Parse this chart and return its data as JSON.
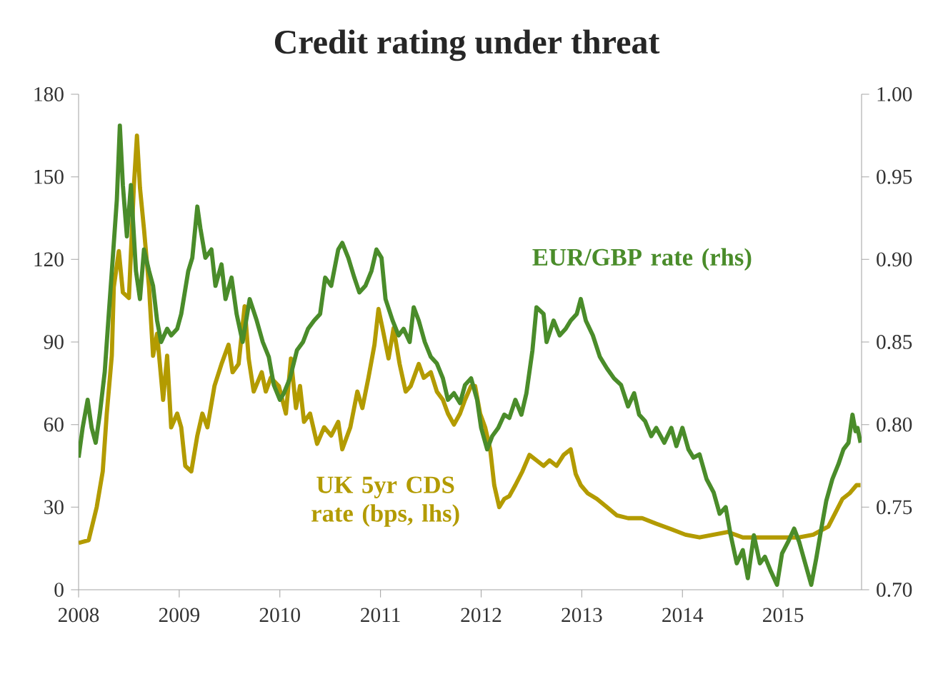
{
  "chart_data": {
    "type": "line",
    "title": "Credit rating under threat",
    "xlim": [
      2008,
      2015.78
    ],
    "xticks": [
      2008,
      2009,
      2010,
      2011,
      2012,
      2013,
      2014,
      2015
    ],
    "ylim": [
      0,
      180
    ],
    "yticks": [
      0,
      30,
      60,
      90,
      120,
      150,
      180
    ],
    "y2lim": [
      0.7,
      1.0
    ],
    "y2ticks": [
      {
        "value": 0.7,
        "label": "0.70"
      },
      {
        "value": 0.75,
        "label": "0.75"
      },
      {
        "value": 0.8,
        "label": "0.80"
      },
      {
        "value": 0.85,
        "label": "0.85"
      },
      {
        "value": 0.9,
        "label": "0.90"
      },
      {
        "value": 0.95,
        "label": "0.95"
      },
      {
        "value": 1.0,
        "label": "1.00"
      }
    ],
    "series": [
      {
        "name": "UK 5yr CDS rate (bps, lhs)",
        "color": "#b39b00",
        "x": [
          2008.0,
          2008.1,
          2008.18,
          2008.24,
          2008.28,
          2008.33,
          2008.35,
          2008.4,
          2008.44,
          2008.5,
          2008.55,
          2008.58,
          2008.61,
          2008.65,
          2008.7,
          2008.74,
          2008.78,
          2008.84,
          2008.88,
          2008.92,
          2008.98,
          2009.02,
          2009.06,
          2009.12,
          2009.18,
          2009.23,
          2009.28,
          2009.35,
          2009.42,
          2009.49,
          2009.53,
          2009.59,
          2009.65,
          2009.69,
          2009.74,
          2009.82,
          2009.86,
          2009.91,
          2009.99,
          2010.06,
          2010.11,
          2010.16,
          2010.2,
          2010.24,
          2010.3,
          2010.37,
          2010.44,
          2010.51,
          2010.58,
          2010.62,
          2010.7,
          2010.77,
          2010.82,
          2010.88,
          2010.94,
          2010.98,
          2011.02,
          2011.08,
          2011.13,
          2011.19,
          2011.25,
          2011.3,
          2011.38,
          2011.43,
          2011.5,
          2011.56,
          2011.62,
          2011.67,
          2011.73,
          2011.79,
          2011.84,
          2011.9,
          2011.94,
          2011.99,
          2012.04,
          2012.09,
          2012.13,
          2012.18,
          2012.23,
          2012.28,
          2012.34,
          2012.41,
          2012.48,
          2012.55,
          2012.62,
          2012.68,
          2012.75,
          2012.82,
          2012.89,
          2012.94,
          2012.99,
          2013.06,
          2013.15,
          2013.25,
          2013.35,
          2013.46,
          2013.6,
          2013.74,
          2013.89,
          2014.03,
          2014.17,
          2014.31,
          2014.45,
          2014.6,
          2014.74,
          2014.88,
          2015.02,
          2015.16,
          2015.3,
          2015.45,
          2015.52,
          2015.59,
          2015.66,
          2015.73,
          2015.77
        ],
        "values": [
          17,
          18,
          30,
          43,
          64,
          85,
          110,
          123,
          108,
          106,
          147,
          165,
          146,
          131,
          110,
          85,
          93,
          69,
          85,
          59,
          64,
          59,
          45,
          43,
          56,
          64,
          59,
          74,
          82,
          89,
          79,
          82,
          103,
          84,
          72,
          79,
          72,
          77,
          74,
          64,
          84,
          66,
          74,
          61,
          64,
          53,
          59,
          56,
          61,
          51,
          59,
          72,
          66,
          77,
          89,
          102,
          95,
          84,
          95,
          82,
          72,
          74,
          82,
          77,
          79,
          72,
          69,
          64,
          60,
          64,
          69,
          74,
          74,
          64,
          59,
          51,
          38,
          30,
          33,
          34,
          38,
          43,
          49,
          47,
          45,
          47,
          45,
          49,
          51,
          42,
          38,
          35,
          33,
          30,
          27,
          26,
          26,
          24,
          22,
          20,
          19,
          20,
          21,
          19,
          19,
          19,
          19,
          19,
          20,
          23,
          28,
          33,
          35,
          38,
          38
        ]
      },
      {
        "name": "EUR/GBP rate (rhs)",
        "color": "#4a8c2a",
        "axis": "y2",
        "x": [
          2008.0,
          2008.04,
          2008.09,
          2008.13,
          2008.17,
          2008.21,
          2008.26,
          2008.3,
          2008.34,
          2008.38,
          2008.41,
          2008.44,
          2008.48,
          2008.52,
          2008.57,
          2008.61,
          2008.65,
          2008.7,
          2008.74,
          2008.78,
          2008.82,
          2008.88,
          2008.92,
          2008.98,
          2009.02,
          2009.09,
          2009.13,
          2009.18,
          2009.21,
          2009.26,
          2009.32,
          2009.36,
          2009.42,
          2009.46,
          2009.52,
          2009.57,
          2009.63,
          2009.7,
          2009.77,
          2009.83,
          2009.89,
          2009.94,
          2010.0,
          2010.04,
          2010.1,
          2010.17,
          2010.23,
          2010.28,
          2010.34,
          2010.4,
          2010.45,
          2010.51,
          2010.58,
          2010.62,
          2010.68,
          2010.74,
          2010.79,
          2010.85,
          2010.91,
          2010.96,
          2011.01,
          2011.05,
          2011.12,
          2011.18,
          2011.23,
          2011.29,
          2011.33,
          2011.38,
          2011.44,
          2011.5,
          2011.56,
          2011.62,
          2011.67,
          2011.73,
          2011.79,
          2011.84,
          2011.9,
          2011.96,
          2012.0,
          2012.06,
          2012.11,
          2012.17,
          2012.23,
          2012.28,
          2012.34,
          2012.4,
          2012.45,
          2012.51,
          2012.55,
          2012.62,
          2012.65,
          2012.72,
          2012.78,
          2012.84,
          2012.89,
          2012.95,
          2012.99,
          2013.04,
          2013.11,
          2013.18,
          2013.25,
          2013.32,
          2013.39,
          2013.46,
          2013.52,
          2013.57,
          2013.63,
          2013.69,
          2013.74,
          2013.82,
          2013.89,
          2013.94,
          2014.0,
          2014.06,
          2014.11,
          2014.17,
          2014.24,
          2014.31,
          2014.37,
          2014.43,
          2014.48,
          2014.54,
          2014.6,
          2014.65,
          2014.71,
          2014.77,
          2014.82,
          2014.88,
          2014.94,
          2014.99,
          2015.05,
          2015.11,
          2015.16,
          2015.22,
          2015.28,
          2015.33,
          2015.38,
          2015.43,
          2015.49,
          2015.55,
          2015.6,
          2015.65,
          2015.69,
          2015.72,
          2015.74,
          2015.77
        ],
        "values": [
          0.78,
          0.798,
          0.815,
          0.798,
          0.789,
          0.806,
          0.832,
          0.867,
          0.901,
          0.936,
          0.981,
          0.945,
          0.914,
          0.945,
          0.893,
          0.876,
          0.906,
          0.893,
          0.884,
          0.863,
          0.85,
          0.858,
          0.854,
          0.858,
          0.867,
          0.893,
          0.901,
          0.932,
          0.919,
          0.901,
          0.906,
          0.884,
          0.897,
          0.876,
          0.889,
          0.867,
          0.85,
          0.876,
          0.863,
          0.85,
          0.841,
          0.824,
          0.815,
          0.819,
          0.828,
          0.845,
          0.85,
          0.858,
          0.863,
          0.867,
          0.889,
          0.884,
          0.906,
          0.91,
          0.901,
          0.889,
          0.88,
          0.884,
          0.893,
          0.906,
          0.901,
          0.876,
          0.863,
          0.854,
          0.858,
          0.85,
          0.871,
          0.863,
          0.85,
          0.841,
          0.837,
          0.828,
          0.815,
          0.819,
          0.813,
          0.824,
          0.828,
          0.815,
          0.798,
          0.785,
          0.793,
          0.798,
          0.806,
          0.804,
          0.815,
          0.806,
          0.819,
          0.845,
          0.871,
          0.867,
          0.85,
          0.863,
          0.854,
          0.858,
          0.863,
          0.867,
          0.876,
          0.863,
          0.854,
          0.841,
          0.834,
          0.828,
          0.824,
          0.811,
          0.819,
          0.806,
          0.802,
          0.793,
          0.798,
          0.789,
          0.798,
          0.787,
          0.798,
          0.785,
          0.78,
          0.782,
          0.767,
          0.759,
          0.746,
          0.75,
          0.733,
          0.716,
          0.724,
          0.707,
          0.733,
          0.716,
          0.72,
          0.711,
          0.703,
          0.722,
          0.729,
          0.737,
          0.729,
          0.716,
          0.703,
          0.719,
          0.737,
          0.754,
          0.767,
          0.776,
          0.785,
          0.789,
          0.806,
          0.796,
          0.798,
          0.789
        ]
      }
    ]
  }
}
